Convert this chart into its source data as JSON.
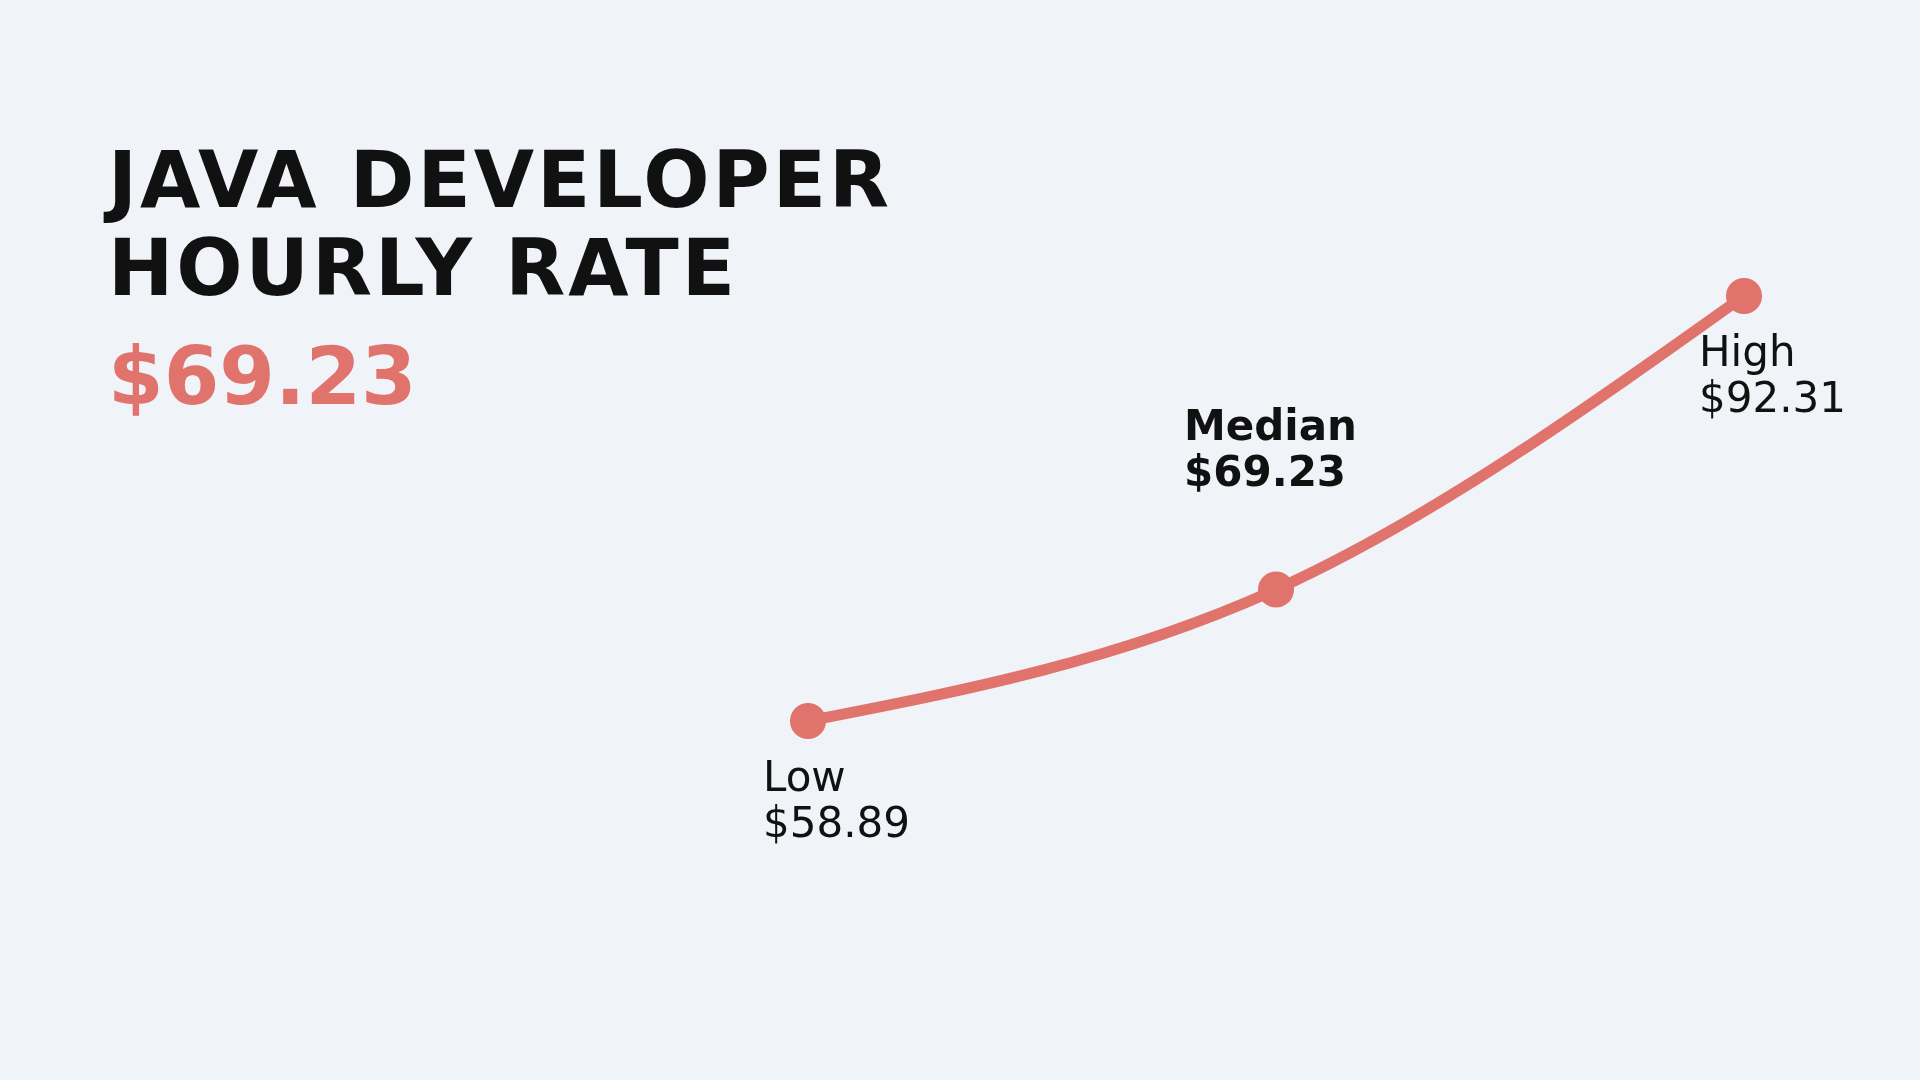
{
  "chart_data": {
    "type": "line",
    "title": "JAVA DEVELOPER HOURLY RATE",
    "subtitle": "$69.23",
    "categories": [
      "Low",
      "Median",
      "High"
    ],
    "values": [
      58.89,
      69.23,
      92.31
    ],
    "value_labels": [
      "$58.89",
      "$69.23",
      "$92.31"
    ],
    "color": "#e0736c",
    "marker": "circle",
    "line_style": "solid"
  }
}
